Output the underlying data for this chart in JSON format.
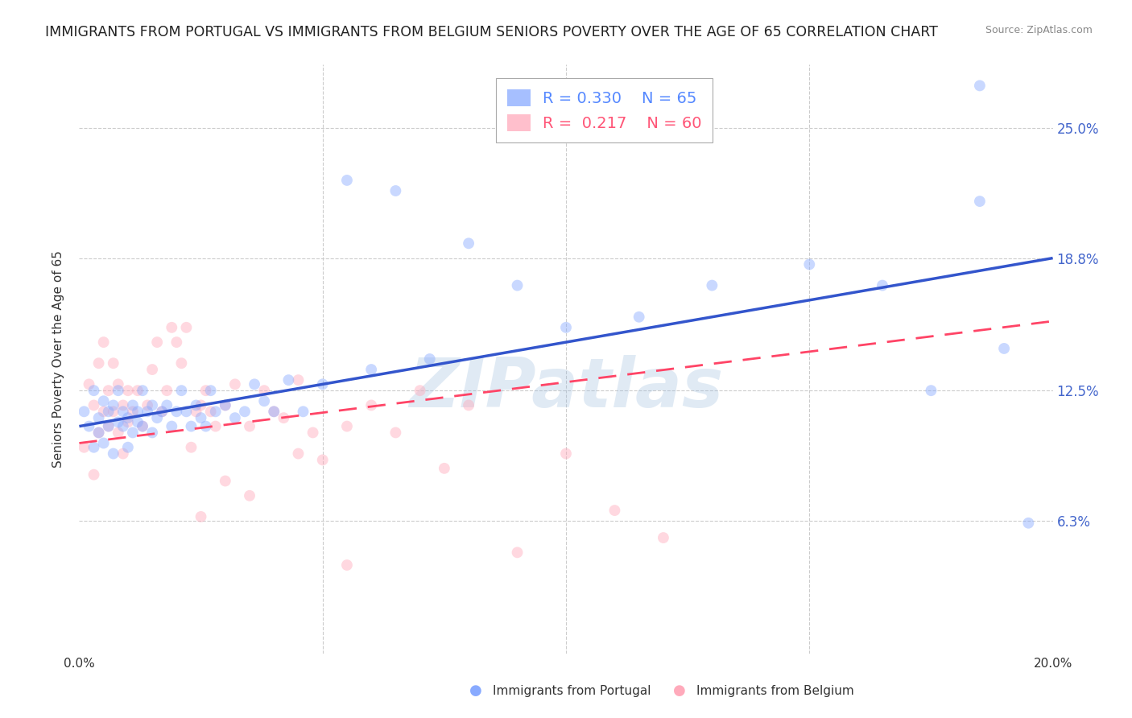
{
  "title": "IMMIGRANTS FROM PORTUGAL VS IMMIGRANTS FROM BELGIUM SENIORS POVERTY OVER THE AGE OF 65 CORRELATION CHART",
  "source": "Source: ZipAtlas.com",
  "ylabel": "Seniors Poverty Over the Age of 65",
  "xlim": [
    0.0,
    0.2
  ],
  "ylim": [
    0.0,
    0.28
  ],
  "ytick_positions": [
    0.063,
    0.125,
    0.188,
    0.25
  ],
  "ytick_labels": [
    "6.3%",
    "12.5%",
    "18.8%",
    "25.0%"
  ],
  "portugal_color": "#88aaff",
  "belgium_color": "#ffaabb",
  "portugal_R": 0.33,
  "portugal_N": 65,
  "belgium_R": 0.217,
  "belgium_N": 60,
  "legend_R_color_portugal": "#5588ff",
  "legend_R_color_belgium": "#ff5577",
  "watermark": "ZIPatlas",
  "portugal_line_x_start": 0.0,
  "portugal_line_x_end": 0.2,
  "portugal_line_y_start": 0.108,
  "portugal_line_y_end": 0.188,
  "belgium_line_x_start": 0.0,
  "belgium_line_x_end": 0.2,
  "belgium_line_y_start": 0.1,
  "belgium_line_y_end": 0.158,
  "portugal_scatter_x": [
    0.001,
    0.002,
    0.003,
    0.003,
    0.004,
    0.004,
    0.005,
    0.005,
    0.006,
    0.006,
    0.007,
    0.007,
    0.008,
    0.008,
    0.009,
    0.009,
    0.01,
    0.01,
    0.011,
    0.011,
    0.012,
    0.012,
    0.013,
    0.013,
    0.014,
    0.015,
    0.015,
    0.016,
    0.017,
    0.018,
    0.019,
    0.02,
    0.021,
    0.022,
    0.023,
    0.024,
    0.025,
    0.026,
    0.027,
    0.028,
    0.03,
    0.032,
    0.034,
    0.036,
    0.038,
    0.04,
    0.043,
    0.046,
    0.05,
    0.055,
    0.06,
    0.065,
    0.072,
    0.08,
    0.09,
    0.1,
    0.115,
    0.13,
    0.15,
    0.165,
    0.175,
    0.185,
    0.19,
    0.185,
    0.195
  ],
  "portugal_scatter_y": [
    0.115,
    0.108,
    0.125,
    0.098,
    0.112,
    0.105,
    0.12,
    0.1,
    0.115,
    0.108,
    0.118,
    0.095,
    0.11,
    0.125,
    0.108,
    0.115,
    0.112,
    0.098,
    0.118,
    0.105,
    0.115,
    0.11,
    0.108,
    0.125,
    0.115,
    0.118,
    0.105,
    0.112,
    0.115,
    0.118,
    0.108,
    0.115,
    0.125,
    0.115,
    0.108,
    0.118,
    0.112,
    0.108,
    0.125,
    0.115,
    0.118,
    0.112,
    0.115,
    0.128,
    0.12,
    0.115,
    0.13,
    0.115,
    0.128,
    0.225,
    0.135,
    0.22,
    0.14,
    0.195,
    0.175,
    0.155,
    0.16,
    0.175,
    0.185,
    0.175,
    0.125,
    0.27,
    0.145,
    0.215,
    0.062
  ],
  "belgium_scatter_x": [
    0.001,
    0.002,
    0.003,
    0.003,
    0.004,
    0.004,
    0.005,
    0.005,
    0.006,
    0.006,
    0.007,
    0.007,
    0.008,
    0.008,
    0.009,
    0.009,
    0.01,
    0.01,
    0.011,
    0.012,
    0.013,
    0.014,
    0.015,
    0.016,
    0.017,
    0.018,
    0.019,
    0.02,
    0.021,
    0.022,
    0.023,
    0.024,
    0.025,
    0.026,
    0.027,
    0.028,
    0.03,
    0.032,
    0.035,
    0.038,
    0.04,
    0.042,
    0.045,
    0.048,
    0.05,
    0.055,
    0.06,
    0.065,
    0.07,
    0.075,
    0.08,
    0.09,
    0.1,
    0.11,
    0.12,
    0.03,
    0.025,
    0.035,
    0.045,
    0.055
  ],
  "belgium_scatter_y": [
    0.098,
    0.128,
    0.118,
    0.085,
    0.138,
    0.105,
    0.148,
    0.115,
    0.125,
    0.108,
    0.138,
    0.115,
    0.128,
    0.105,
    0.118,
    0.095,
    0.125,
    0.11,
    0.115,
    0.125,
    0.108,
    0.118,
    0.135,
    0.148,
    0.115,
    0.125,
    0.155,
    0.148,
    0.138,
    0.155,
    0.098,
    0.115,
    0.118,
    0.125,
    0.115,
    0.108,
    0.118,
    0.128,
    0.108,
    0.125,
    0.115,
    0.112,
    0.095,
    0.105,
    0.092,
    0.108,
    0.118,
    0.105,
    0.125,
    0.088,
    0.118,
    0.048,
    0.095,
    0.068,
    0.055,
    0.082,
    0.065,
    0.075,
    0.13,
    0.042
  ],
  "grid_color": "#cccccc",
  "background_color": "#ffffff",
  "title_fontsize": 12.5,
  "axis_label_fontsize": 11,
  "tick_fontsize": 11,
  "marker_size": 100,
  "marker_alpha": 0.45,
  "right_axis_color": "#4466cc"
}
